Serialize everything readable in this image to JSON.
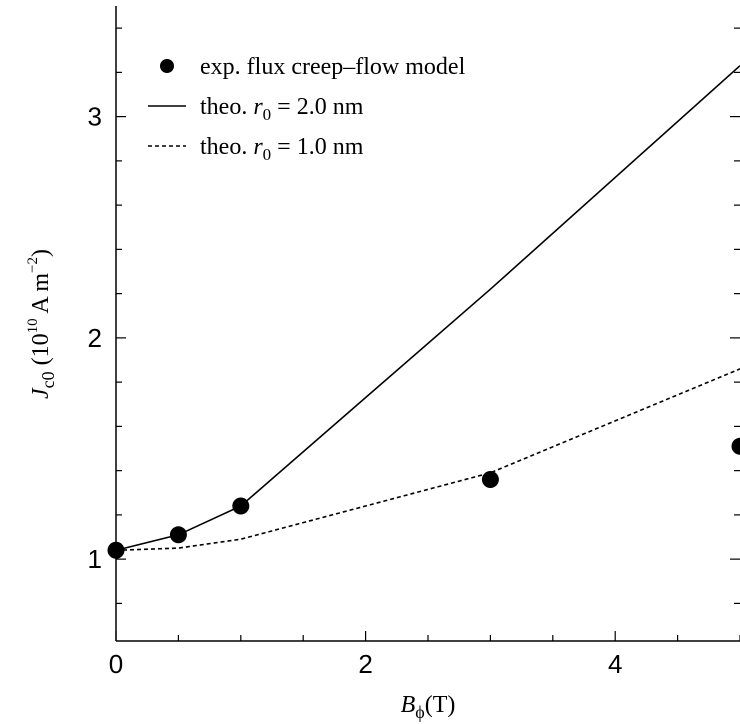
{
  "chart_data": {
    "type": "line",
    "xlim": [
      0,
      5
    ],
    "ylim": [
      0.63,
      3.5
    ],
    "x_major_ticks": [
      0,
      2,
      4
    ],
    "x_major_tick_labels": [
      "0",
      "2",
      "4"
    ],
    "y_major_ticks": [
      1,
      2,
      3
    ],
    "y_major_tick_labels": [
      "1",
      "2",
      "3"
    ],
    "xlabel": {
      "symbol": "B",
      "subscript": "ϕ",
      "unit": "(T)"
    },
    "ylabel": {
      "symbol": "J",
      "subscript": "c0",
      "unit_prefix": "(10",
      "exponent": "10",
      "unit_mid": " A m",
      "unit_exp": "−2",
      "unit_suffix": ")"
    },
    "legend": {
      "placement": "top-left",
      "entries": [
        {
          "marker": "dot",
          "prefix": "exp.",
          "label": "flux creep–flow model"
        },
        {
          "marker": "solid-line",
          "prefix": "theo.",
          "symbol": "r",
          "subscript": "0",
          "value": " = 2.0 nm"
        },
        {
          "marker": "dashed-line",
          "prefix": "theo.",
          "symbol": "r",
          "subscript": "0",
          "value": " = 1.0 nm"
        }
      ]
    },
    "series": [
      {
        "style": "points",
        "color": "#000000",
        "x": [
          0,
          0.5,
          1.0,
          3.0,
          5.0
        ],
        "y": [
          1.04,
          1.11,
          1.24,
          1.36,
          1.51
        ]
      },
      {
        "style": "solid",
        "color": "#000000",
        "x": [
          0,
          0.5,
          1.0,
          3.0,
          5.0
        ],
        "y": [
          1.04,
          1.11,
          1.24,
          2.22,
          3.23
        ]
      },
      {
        "style": "dashed",
        "color": "#000000",
        "x": [
          0,
          0.5,
          1.0,
          3.0,
          5.0
        ],
        "y": [
          1.04,
          1.05,
          1.09,
          1.39,
          1.86
        ]
      }
    ]
  }
}
